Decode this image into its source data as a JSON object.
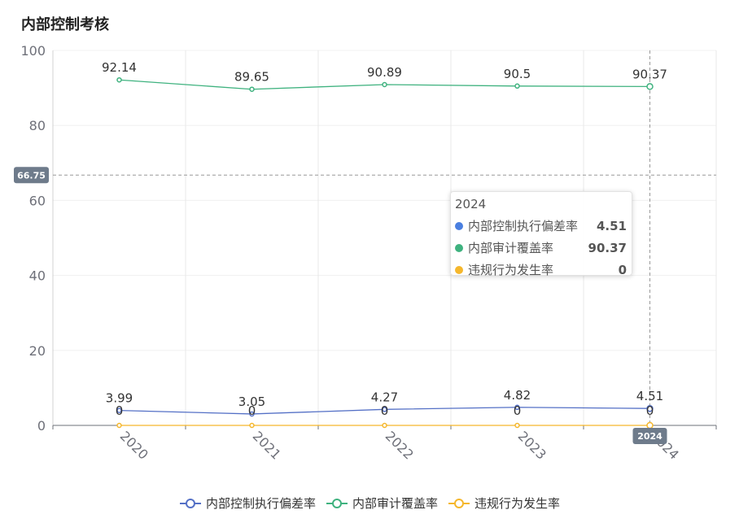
{
  "title": "内部控制考核",
  "chart_data": {
    "type": "line",
    "categories": [
      "2020",
      "2021",
      "2022",
      "2023",
      "2024"
    ],
    "ylim": [
      0,
      100
    ],
    "yticks": [
      0,
      20,
      40,
      60,
      80,
      100
    ],
    "series": [
      {
        "name": "内部控制执行偏差率",
        "values": [
          3.99,
          3.05,
          4.27,
          4.82,
          4.51
        ],
        "color": "#5470c6"
      },
      {
        "name": "内部审计覆盖率",
        "values": [
          92.14,
          89.65,
          90.89,
          90.5,
          90.37
        ],
        "color": "#3fb27f"
      },
      {
        "name": "违规行为发生率",
        "values": [
          0,
          0,
          0,
          0,
          0
        ],
        "color": "#f5b72c"
      }
    ],
    "crosshair": {
      "y_value": 66.75,
      "y_label": "66.75",
      "x_category": "2024",
      "x_label": "2024"
    }
  },
  "tooltip": {
    "title": "2024",
    "rows": [
      {
        "name": "内部控制执行偏差率",
        "value": "4.51",
        "color": "#4a7fe0"
      },
      {
        "name": "内部审计覆盖率",
        "value": "90.37",
        "color": "#3fb27f"
      },
      {
        "name": "违规行为发生率",
        "value": "0",
        "color": "#f5b72c"
      }
    ]
  }
}
